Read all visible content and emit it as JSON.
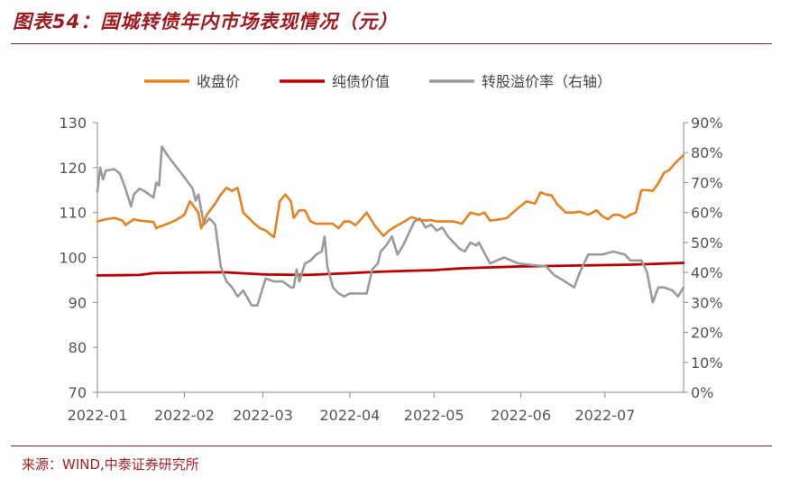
{
  "title": "图表54：国城转债年内市场表现情况（元）",
  "source": "来源：WIND,中泰证券研究所",
  "colors": {
    "close": "#e8821e",
    "bond": "#c00000",
    "premium": "#9b9b9b",
    "accent": "#a31a1e"
  },
  "chart_data": {
    "type": "line",
    "title": "图表54：国城转债年内市场表现情况（元）",
    "x_labels": [
      "2022-01",
      "2022-02",
      "2022-03",
      "2022-04",
      "2022-05",
      "2022-06",
      "2022-07"
    ],
    "x_label_days": [
      0,
      31,
      59,
      90,
      120,
      151,
      181
    ],
    "xlim": [
      0,
      209
    ],
    "y_left": {
      "ylim": [
        70,
        130
      ],
      "ticks": [
        "70",
        "80",
        "90",
        "100",
        "110",
        "120",
        "130"
      ]
    },
    "y_right": {
      "ylim": [
        0,
        90
      ],
      "ticks": [
        "0%",
        "10%",
        "20%",
        "30%",
        "40%",
        "50%",
        "60%",
        "70%",
        "80%",
        "90%"
      ]
    },
    "legend": [
      "收盘价",
      "纯债价值",
      "转股溢价率（右轴）"
    ],
    "series": [
      {
        "name": "收盘价",
        "axis": "left",
        "x": [
          0,
          3,
          6,
          9,
          10,
          13,
          15,
          18,
          20,
          21,
          22,
          25,
          28,
          31,
          33,
          36,
          37,
          39,
          42,
          44,
          46,
          48,
          50,
          52,
          56,
          58,
          60,
          63,
          65,
          67,
          69,
          70,
          72,
          74,
          76,
          78,
          80,
          82,
          84,
          86,
          88,
          90,
          92,
          94,
          96,
          99,
          102,
          104,
          106,
          108,
          110,
          112,
          115,
          117,
          119,
          121,
          124,
          127,
          130,
          133,
          136,
          138,
          140,
          144,
          146,
          150,
          153,
          156,
          158,
          160,
          162,
          164,
          167,
          170,
          172,
          175,
          178,
          180,
          182,
          184,
          186,
          188,
          190,
          192,
          194,
          196,
          198,
          200,
          202,
          204,
          206,
          209
        ],
        "values": [
          108,
          108.5,
          108.8,
          108.2,
          107.2,
          108.5,
          108.2,
          108,
          107.9,
          106.5,
          106.8,
          107.5,
          108.3,
          109.5,
          112.5,
          110,
          106.5,
          109.5,
          112,
          114,
          115.5,
          114.8,
          115.5,
          110,
          107.5,
          106.5,
          106,
          104.5,
          112.5,
          114,
          112.5,
          108.8,
          110.5,
          110.5,
          108,
          107.5,
          107.5,
          107.5,
          107.5,
          106.5,
          108,
          108,
          107.2,
          108.5,
          110,
          107,
          104.8,
          106,
          106.8,
          107.5,
          108.2,
          109,
          108.3,
          108.2,
          108.3,
          108,
          108,
          108,
          107.5,
          110,
          109.5,
          110,
          108.2,
          108.5,
          108.8,
          111,
          112.5,
          112,
          114.5,
          114,
          113.8,
          111.8,
          110,
          110,
          110.2,
          109.5,
          110.5,
          109.2,
          108.5,
          109.5,
          109.5,
          108.8,
          109.5,
          110,
          115,
          115,
          114.8,
          116.5,
          118.8,
          119.5,
          121,
          122.8
        ]
      },
      {
        "name": "纯债价值",
        "axis": "left",
        "x": [
          0,
          15,
          20,
          30,
          45,
          60,
          75,
          90,
          100,
          110,
          120,
          130,
          140,
          150,
          160,
          170,
          180,
          190,
          200,
          209
        ],
        "values": [
          96,
          96.1,
          96.5,
          96.6,
          96.7,
          96.2,
          96.1,
          96.5,
          96.8,
          97.0,
          97.2,
          97.6,
          97.8,
          98.0,
          98.1,
          98.2,
          98.3,
          98.4,
          98.6,
          98.8
        ]
      },
      {
        "name": "转股溢价率（右轴）",
        "axis": "right",
        "x": [
          0,
          1,
          2,
          3,
          6,
          8,
          10,
          12,
          13,
          15,
          17,
          20,
          21,
          22,
          23,
          25,
          30,
          34,
          35,
          36,
          38,
          40,
          42,
          44,
          46,
          48,
          50,
          52,
          55,
          57,
          59,
          60,
          63,
          66,
          69,
          70,
          71,
          72,
          74,
          76,
          78,
          80,
          81,
          82,
          84,
          86,
          88,
          90,
          92,
          94,
          96,
          98,
          100,
          101,
          103,
          105,
          107,
          109,
          111,
          113,
          115,
          117,
          119,
          121,
          123,
          125,
          127,
          129,
          131,
          133,
          135,
          136,
          140,
          145,
          150,
          160,
          163,
          165,
          170,
          172,
          175,
          180,
          184,
          188,
          190,
          194,
          196,
          198,
          200,
          202,
          205,
          207,
          209
        ],
        "values": [
          67,
          75,
          71,
          74,
          74.5,
          73,
          68,
          62,
          66,
          68,
          67,
          65,
          70,
          69,
          82,
          79,
          73,
          68,
          64,
          66,
          56,
          58,
          56,
          42,
          37,
          35,
          32,
          34,
          29,
          29,
          35,
          38,
          37,
          37,
          35,
          35,
          41,
          37,
          43,
          44,
          46,
          47,
          52,
          42,
          35,
          33,
          32,
          33,
          33,
          33,
          33,
          41,
          43,
          47,
          49,
          52,
          46,
          49,
          53,
          57,
          58,
          55,
          56,
          54,
          55,
          52,
          50,
          48,
          47,
          50,
          49,
          50,
          43,
          45,
          43,
          42,
          39,
          38,
          35,
          40,
          46,
          46,
          47,
          46,
          44,
          44,
          40,
          30,
          35,
          35,
          34,
          32,
          35
        ]
      }
    ]
  }
}
